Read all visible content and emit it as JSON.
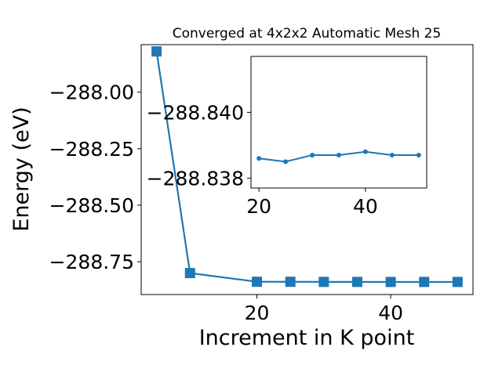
{
  "chart_data": [
    {
      "type": "line",
      "title": "Converged at 4x2x2 Automatic Mesh 25",
      "xlabel": "Increment in K point",
      "ylabel": "Energy (eV)",
      "xlim": [
        2.7,
        52.3
      ],
      "ylim": [
        -288.895,
        -287.79
      ],
      "xticks": [
        20,
        40
      ],
      "xtick_labels": [
        "20",
        "40"
      ],
      "yticks": [
        -288.75,
        -288.5,
        -288.25,
        -288.0
      ],
      "ytick_labels": [
        "−288.75",
        "−288.50",
        "−288.25",
        "−288.00"
      ],
      "grid": false,
      "legend": "none",
      "series": [
        {
          "marker": "square",
          "color": "#1f77b4",
          "x": [
            5,
            10,
            20,
            25,
            30,
            35,
            40,
            45,
            50
          ],
          "y": [
            -287.82,
            -288.8,
            -288.8385,
            -288.8386,
            -288.8392,
            -288.8392,
            -288.8394,
            -288.8393,
            -288.8393
          ]
        }
      ]
    },
    {
      "type": "line",
      "title": "",
      "xlabel": "",
      "ylabel": "",
      "xlim": [
        18.5,
        51.5
      ],
      "ylim": [
        -288.8377,
        -288.8417
      ],
      "xticks": [
        20,
        40
      ],
      "xtick_labels": [
        "20",
        "40"
      ],
      "yticks": [
        -288.838,
        -288.84
      ],
      "ytick_labels": [
        "−288.838",
        "−288.840"
      ],
      "grid": false,
      "legend": "none",
      "series": [
        {
          "marker": "circle",
          "color": "#1f77b4",
          "x": [
            20,
            25,
            30,
            35,
            40,
            45,
            50
          ],
          "y": [
            -288.8386,
            -288.8385,
            -288.8387,
            -288.8387,
            -288.8388,
            -288.8387,
            -288.8387
          ]
        }
      ]
    }
  ]
}
